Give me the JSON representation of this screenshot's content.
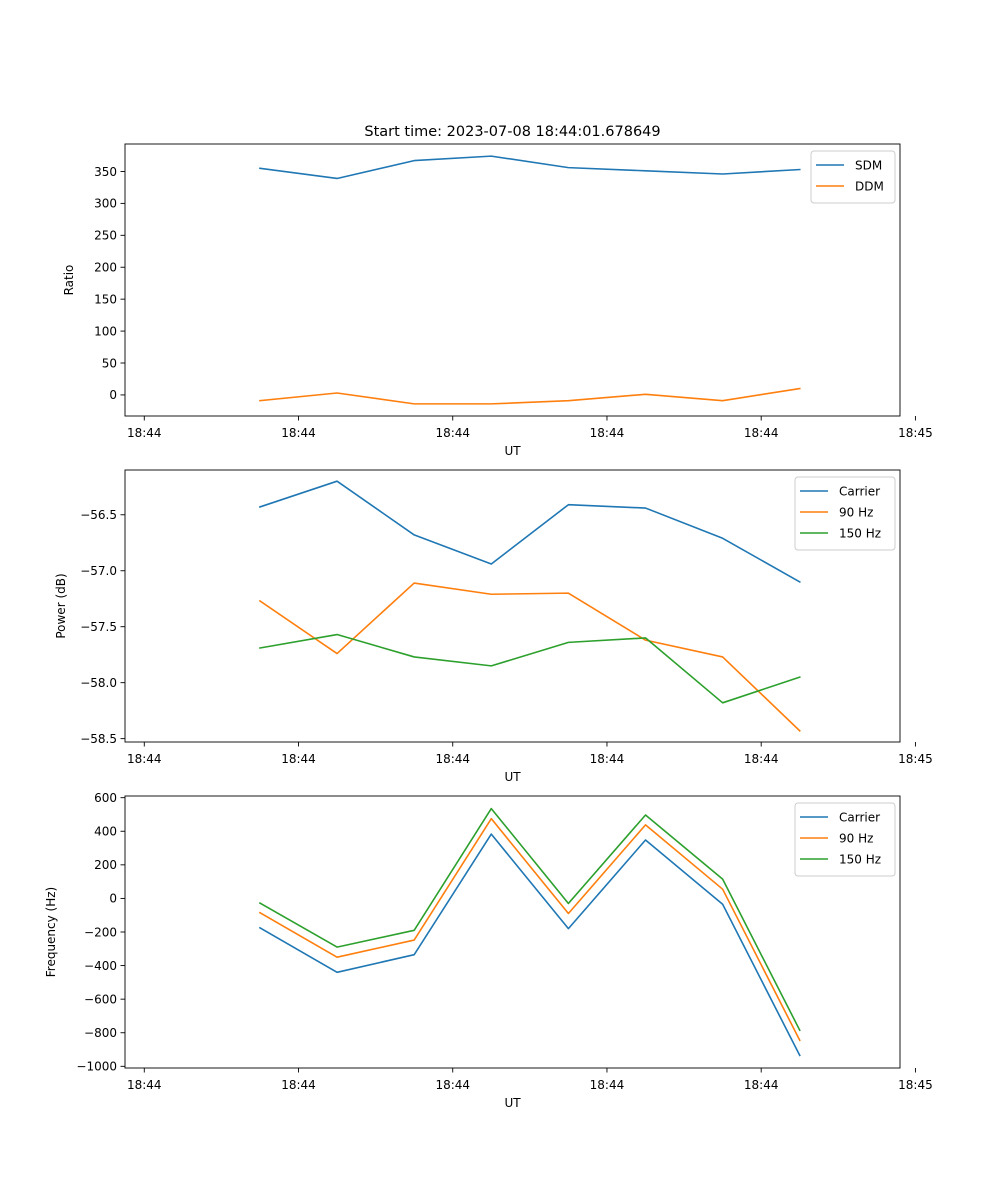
{
  "figure": {
    "title": "Start time: 2023-07-08 18:44:01.678649"
  },
  "chart_data": [
    {
      "type": "line",
      "title": "Start time: 2023-07-08 18:44:01.678649",
      "xlabel": "UT",
      "ylabel": "Ratio",
      "x": [
        1.0,
        2.0,
        3.0,
        4.0,
        5.0,
        6.0,
        7.0,
        8.0
      ],
      "xlim": [
        -0.75,
        9.3
      ],
      "xticks": [
        -0.5,
        1.5,
        3.5,
        5.5,
        7.5,
        9.5
      ],
      "xtick_labels": [
        "18:44",
        "18:44",
        "18:44",
        "18:44",
        "18:44",
        "18:45"
      ],
      "ylim": [
        -33,
        393
      ],
      "yticks": [
        0,
        50,
        100,
        150,
        200,
        250,
        300,
        350
      ],
      "ytick_labels": [
        "0",
        "50",
        "100",
        "150",
        "200",
        "250",
        "300",
        "350"
      ],
      "legend": "top-right",
      "series": [
        {
          "name": "SDM",
          "color": "#1f77b4",
          "values": [
            355,
            339,
            367,
            374,
            356,
            351,
            346,
            353
          ]
        },
        {
          "name": "DDM",
          "color": "#ff7f0e",
          "values": [
            -9,
            3,
            -14,
            -14,
            -9,
            1,
            -9,
            10
          ]
        }
      ]
    },
    {
      "type": "line",
      "title": "",
      "xlabel": "UT",
      "ylabel": "Power (dB)",
      "x": [
        1.0,
        2.0,
        3.0,
        4.0,
        5.0,
        6.0,
        7.0,
        8.0
      ],
      "xlim": [
        -0.75,
        9.3
      ],
      "xticks": [
        -0.5,
        1.5,
        3.5,
        5.5,
        7.5,
        9.5
      ],
      "xtick_labels": [
        "18:44",
        "18:44",
        "18:44",
        "18:44",
        "18:44",
        "18:45"
      ],
      "ylim": [
        -58.53,
        -56.1
      ],
      "yticks": [
        -58.5,
        -58.0,
        -57.5,
        -57.0,
        -56.5
      ],
      "ytick_labels": [
        "−58.5",
        "−58.0",
        "−57.5",
        "−57.0",
        "−56.5"
      ],
      "legend": "top-right",
      "series": [
        {
          "name": "Carrier",
          "color": "#1f77b4",
          "values": [
            -56.43,
            -56.2,
            -56.68,
            -56.94,
            -56.41,
            -56.44,
            -56.71,
            -57.1
          ]
        },
        {
          "name": "90 Hz",
          "color": "#ff7f0e",
          "values": [
            -57.27,
            -57.74,
            -57.11,
            -57.21,
            -57.2,
            -57.62,
            -57.77,
            -58.43
          ]
        },
        {
          "name": "150 Hz",
          "color": "#2ca02c",
          "values": [
            -57.69,
            -57.57,
            -57.77,
            -57.85,
            -57.64,
            -57.6,
            -58.18,
            -57.95
          ]
        }
      ]
    },
    {
      "type": "line",
      "title": "",
      "xlabel": "UT",
      "ylabel": "Frequency (Hz)",
      "x": [
        1.0,
        2.0,
        3.0,
        4.0,
        5.0,
        6.0,
        7.0,
        8.0
      ],
      "xlim": [
        -0.75,
        9.3
      ],
      "xticks": [
        -0.5,
        1.5,
        3.5,
        5.5,
        7.5,
        9.5
      ],
      "xtick_labels": [
        "18:44",
        "18:44",
        "18:44",
        "18:44",
        "18:44",
        "18:45"
      ],
      "ylim": [
        -1010,
        610
      ],
      "yticks": [
        -1000,
        -800,
        -600,
        -400,
        -200,
        0,
        200,
        400,
        600
      ],
      "ytick_labels": [
        "−1000",
        "−800",
        "−600",
        "−400",
        "−200",
        "0",
        "200",
        "400",
        "600"
      ],
      "legend": "top-right",
      "series": [
        {
          "name": "Carrier",
          "color": "#1f77b4",
          "values": [
            -175,
            -440,
            -335,
            383,
            -180,
            348,
            -35,
            -935
          ]
        },
        {
          "name": "90 Hz",
          "color": "#ff7f0e",
          "values": [
            -85,
            -350,
            -248,
            475,
            -90,
            438,
            55,
            -845
          ]
        },
        {
          "name": "150 Hz",
          "color": "#2ca02c",
          "values": [
            -28,
            -290,
            -190,
            535,
            -30,
            497,
            115,
            -785
          ]
        }
      ]
    }
  ]
}
